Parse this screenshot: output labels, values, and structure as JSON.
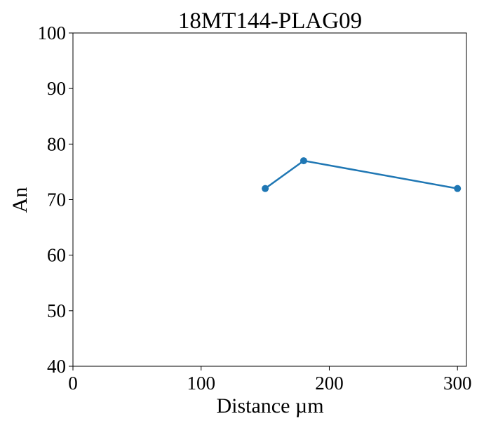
{
  "chart_data": {
    "type": "line",
    "title": "18MT144-PLAG09",
    "xlabel": "Distance µm",
    "ylabel": "An",
    "xlim": [
      0,
      307
    ],
    "ylim": [
      40,
      100
    ],
    "xticks": [
      0,
      100,
      200,
      300
    ],
    "yticks": [
      40,
      50,
      60,
      70,
      80,
      90,
      100
    ],
    "grid": false,
    "series": [
      {
        "x": [
          150,
          180,
          300
        ],
        "y": [
          72,
          77,
          72
        ],
        "color": "#1f77b4",
        "marker": "circle"
      }
    ]
  }
}
